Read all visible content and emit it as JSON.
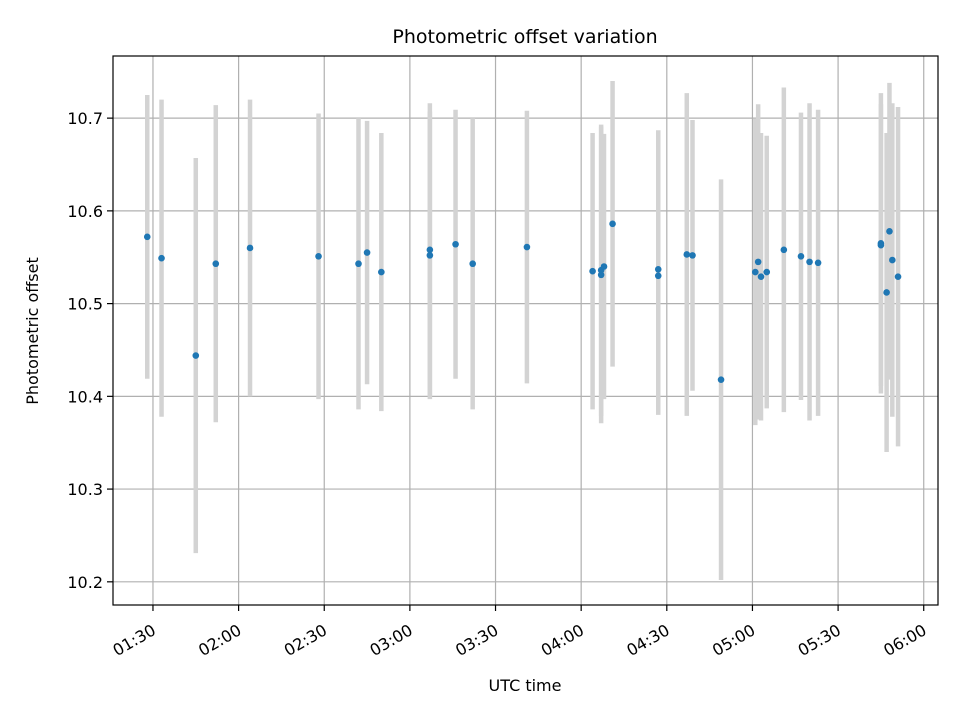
{
  "chart_data": {
    "type": "scatter",
    "title": "Photometric offset variation",
    "xlabel": "UTC time",
    "ylabel": "Photometric offset",
    "x_tick_labels": [
      "01:30",
      "02:00",
      "02:30",
      "03:00",
      "03:30",
      "04:00",
      "04:30",
      "05:00",
      "05:30",
      "06:00"
    ],
    "x_tick_times": [
      "01:30",
      "02:00",
      "02:30",
      "03:00",
      "03:30",
      "04:00",
      "04:30",
      "05:00",
      "05:30",
      "06:00"
    ],
    "xlim": [
      "01:16",
      "06:05"
    ],
    "y_tick_labels": [
      "10.2",
      "10.3",
      "10.4",
      "10.5",
      "10.6",
      "10.7"
    ],
    "y_tick_values": [
      10.2,
      10.3,
      10.4,
      10.5,
      10.6,
      10.7
    ],
    "ylim": [
      10.175,
      10.767
    ],
    "grid": true,
    "point_color": "#1f77b4",
    "errorbar_color": "#d3d3d3",
    "points": [
      {
        "x": "01:28",
        "y": 10.572,
        "err": 0.153
      },
      {
        "x": "01:33",
        "y": 10.549,
        "err": 0.171
      },
      {
        "x": "01:45",
        "y": 10.444,
        "err": 0.213
      },
      {
        "x": "01:52",
        "y": 10.543,
        "err": 0.171
      },
      {
        "x": "02:04",
        "y": 10.56,
        "err": 0.16
      },
      {
        "x": "02:28",
        "y": 10.551,
        "err": 0.154
      },
      {
        "x": "02:42",
        "y": 10.543,
        "err": 0.157
      },
      {
        "x": "02:45",
        "y": 10.555,
        "err": 0.142
      },
      {
        "x": "02:50",
        "y": 10.534,
        "err": 0.15
      },
      {
        "x": "03:07",
        "y": 10.558,
        "err": 0.158
      },
      {
        "x": "03:07",
        "y": 10.552,
        "err": 0.155
      },
      {
        "x": "03:16",
        "y": 10.564,
        "err": 0.145
      },
      {
        "x": "03:22",
        "y": 10.543,
        "err": 0.157
      },
      {
        "x": "03:41",
        "y": 10.561,
        "err": 0.147
      },
      {
        "x": "04:04",
        "y": 10.535,
        "err": 0.149
      },
      {
        "x": "04:07",
        "y": 10.536,
        "err": 0.157
      },
      {
        "x": "04:07",
        "y": 10.531,
        "err": 0.16
      },
      {
        "x": "04:08",
        "y": 10.54,
        "err": 0.143
      },
      {
        "x": "04:11",
        "y": 10.586,
        "err": 0.154
      },
      {
        "x": "04:27",
        "y": 10.537,
        "err": 0.15
      },
      {
        "x": "04:27",
        "y": 10.53,
        "err": 0.15
      },
      {
        "x": "04:37",
        "y": 10.553,
        "err": 0.174
      },
      {
        "x": "04:39",
        "y": 10.552,
        "err": 0.146
      },
      {
        "x": "04:49",
        "y": 10.418,
        "err": 0.216
      },
      {
        "x": "05:01",
        "y": 10.534,
        "err": 0.165
      },
      {
        "x": "05:02",
        "y": 10.545,
        "err": 0.17
      },
      {
        "x": "05:03",
        "y": 10.529,
        "err": 0.155
      },
      {
        "x": "05:05",
        "y": 10.534,
        "err": 0.147
      },
      {
        "x": "05:11",
        "y": 10.558,
        "err": 0.175
      },
      {
        "x": "05:17",
        "y": 10.551,
        "err": 0.155
      },
      {
        "x": "05:20",
        "y": 10.545,
        "err": 0.171
      },
      {
        "x": "05:23",
        "y": 10.544,
        "err": 0.165
      },
      {
        "x": "05:45",
        "y": 10.565,
        "err": 0.162
      },
      {
        "x": "05:45",
        "y": 10.563,
        "err": 0.152
      },
      {
        "x": "05:47",
        "y": 10.512,
        "err": 0.172
      },
      {
        "x": "05:48",
        "y": 10.578,
        "err": 0.16
      },
      {
        "x": "05:49",
        "y": 10.547,
        "err": 0.169
      },
      {
        "x": "05:51",
        "y": 10.529,
        "err": 0.183
      }
    ]
  }
}
